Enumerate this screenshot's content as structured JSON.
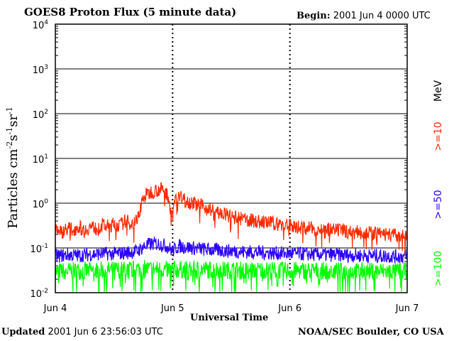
{
  "chart_data": {
    "type": "line",
    "title": "GOES8 Proton Flux (5 minute data)",
    "begin_label": "Begin:",
    "begin_value": "2001 Jun 4 0000 UTC",
    "updated_label": "Updated",
    "updated_value": "2001 Jun  6 23:56:03 UTC",
    "credit": "NOAA/SEC Boulder, CO USA",
    "xlabel": "Universal Time",
    "ylabel": {
      "base": "Particles cm",
      "e1": "-2",
      "mid1": "s",
      "e2": "-1",
      "mid2": "sr",
      "e3": "-1"
    },
    "yscale": "log",
    "ylim": [
      0.01,
      10000
    ],
    "y_ticks": [
      {
        "value": 0.01,
        "base": "10",
        "exp": "-2"
      },
      {
        "value": 0.1,
        "base": "10",
        "exp": "-1"
      },
      {
        "value": 1,
        "base": "10",
        "exp": "0"
      },
      {
        "value": 10,
        "base": "10",
        "exp": "1"
      },
      {
        "value": 100,
        "base": "10",
        "exp": "2"
      },
      {
        "value": 1000,
        "base": "10",
        "exp": "3"
      },
      {
        "value": 10000,
        "base": "10",
        "exp": "4"
      }
    ],
    "x_ticks": [
      "Jun 4",
      "Jun 5",
      "Jun 6",
      "Jun 7"
    ],
    "xlim_days": [
      0,
      3
    ],
    "unit_label": "MeV",
    "series": [
      {
        "name": ">=10",
        "color": "#ff2a00",
        "points": [
          [
            0.0,
            0.3
          ],
          [
            0.05,
            0.22
          ],
          [
            0.1,
            0.28
          ],
          [
            0.15,
            0.25
          ],
          [
            0.2,
            0.3
          ],
          [
            0.25,
            0.24
          ],
          [
            0.3,
            0.3
          ],
          [
            0.35,
            0.27
          ],
          [
            0.4,
            0.32
          ],
          [
            0.45,
            0.3
          ],
          [
            0.5,
            0.34
          ],
          [
            0.55,
            0.32
          ],
          [
            0.6,
            0.4
          ],
          [
            0.65,
            0.35
          ],
          [
            0.7,
            0.42
          ],
          [
            0.72,
            0.7
          ],
          [
            0.75,
            1.35
          ],
          [
            0.78,
            1.55
          ],
          [
            0.82,
            1.8
          ],
          [
            0.86,
            1.95
          ],
          [
            0.9,
            2.05
          ],
          [
            0.93,
            1.85
          ],
          [
            0.96,
            1.5
          ],
          [
            0.98,
            0.8
          ],
          [
            1.0,
            0.6
          ],
          [
            1.02,
            1.3
          ],
          [
            1.05,
            1.4
          ],
          [
            1.1,
            1.2
          ],
          [
            1.15,
            1.05
          ],
          [
            1.2,
            0.95
          ],
          [
            1.25,
            0.85
          ],
          [
            1.3,
            0.75
          ],
          [
            1.35,
            0.68
          ],
          [
            1.4,
            0.6
          ],
          [
            1.45,
            0.55
          ],
          [
            1.5,
            0.5
          ],
          [
            1.55,
            0.46
          ],
          [
            1.6,
            0.44
          ],
          [
            1.65,
            0.42
          ],
          [
            1.7,
            0.4
          ],
          [
            1.75,
            0.38
          ],
          [
            1.8,
            0.37
          ],
          [
            1.85,
            0.36
          ],
          [
            1.9,
            0.34
          ],
          [
            1.95,
            0.33
          ],
          [
            2.0,
            0.32
          ],
          [
            2.05,
            0.3
          ],
          [
            2.1,
            0.29
          ],
          [
            2.15,
            0.28
          ],
          [
            2.2,
            0.27
          ],
          [
            2.25,
            0.26
          ],
          [
            2.3,
            0.26
          ],
          [
            2.35,
            0.25
          ],
          [
            2.4,
            0.24
          ],
          [
            2.45,
            0.25
          ],
          [
            2.5,
            0.23
          ],
          [
            2.55,
            0.22
          ],
          [
            2.6,
            0.23
          ],
          [
            2.65,
            0.22
          ],
          [
            2.7,
            0.21
          ],
          [
            2.75,
            0.21
          ],
          [
            2.8,
            0.2
          ],
          [
            2.85,
            0.2
          ],
          [
            2.9,
            0.19
          ],
          [
            2.95,
            0.18
          ],
          [
            3.0,
            0.17
          ]
        ]
      },
      {
        "name": ">=50",
        "color": "#2a00ff",
        "points": [
          [
            0.0,
            0.065
          ],
          [
            0.1,
            0.07
          ],
          [
            0.2,
            0.068
          ],
          [
            0.3,
            0.072
          ],
          [
            0.4,
            0.075
          ],
          [
            0.5,
            0.074
          ],
          [
            0.6,
            0.078
          ],
          [
            0.7,
            0.085
          ],
          [
            0.75,
            0.105
          ],
          [
            0.8,
            0.12
          ],
          [
            0.85,
            0.125
          ],
          [
            0.9,
            0.12
          ],
          [
            0.95,
            0.11
          ],
          [
            1.0,
            0.085
          ],
          [
            1.05,
            0.11
          ],
          [
            1.1,
            0.105
          ],
          [
            1.2,
            0.098
          ],
          [
            1.3,
            0.092
          ],
          [
            1.4,
            0.088
          ],
          [
            1.5,
            0.085
          ],
          [
            1.6,
            0.082
          ],
          [
            1.7,
            0.08
          ],
          [
            1.8,
            0.078
          ],
          [
            1.9,
            0.076
          ],
          [
            2.0,
            0.075
          ],
          [
            2.1,
            0.074
          ],
          [
            2.2,
            0.072
          ],
          [
            2.3,
            0.071
          ],
          [
            2.4,
            0.07
          ],
          [
            2.5,
            0.069
          ],
          [
            2.6,
            0.068
          ],
          [
            2.7,
            0.067
          ],
          [
            2.8,
            0.066
          ],
          [
            2.9,
            0.065
          ],
          [
            3.0,
            0.064
          ]
        ]
      },
      {
        "name": ">=100",
        "color": "#00ff00",
        "points": [
          [
            0.0,
            0.03
          ],
          [
            0.25,
            0.031
          ],
          [
            0.5,
            0.032
          ],
          [
            0.75,
            0.034
          ],
          [
            1.0,
            0.033
          ],
          [
            1.25,
            0.033
          ],
          [
            1.5,
            0.032
          ],
          [
            1.75,
            0.032
          ],
          [
            2.0,
            0.031
          ],
          [
            2.25,
            0.031
          ],
          [
            2.5,
            0.03
          ],
          [
            2.75,
            0.03
          ],
          [
            3.0,
            0.03
          ]
        ]
      }
    ]
  }
}
